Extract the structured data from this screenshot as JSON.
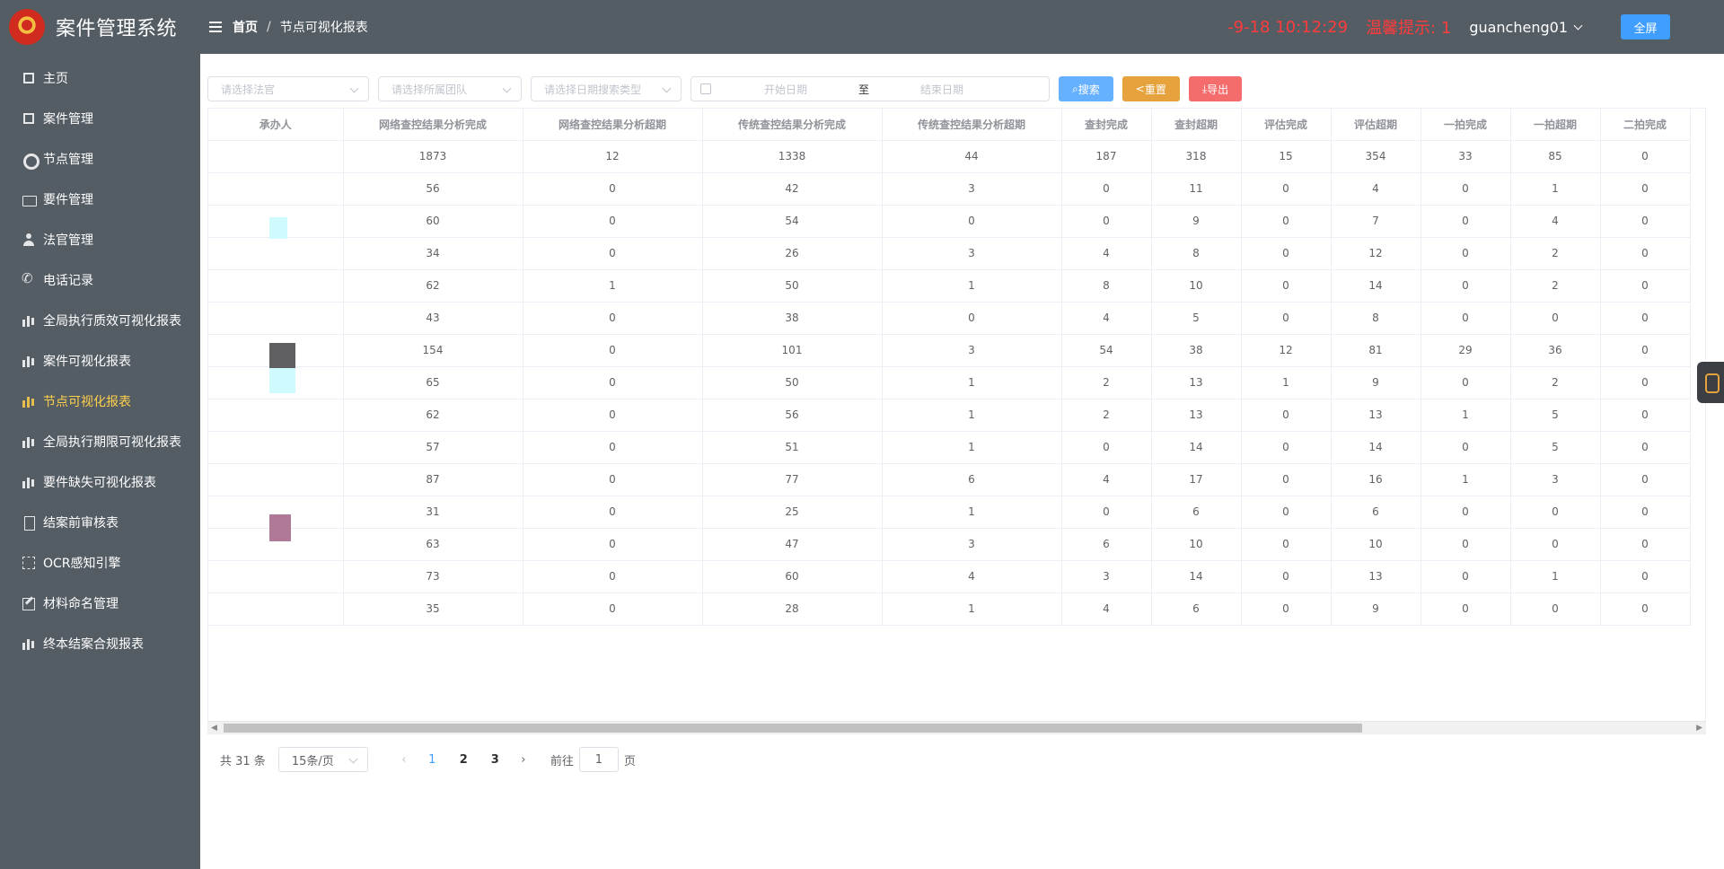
{
  "brand": {
    "title": "案件管理系统"
  },
  "sidebar": {
    "items": [
      {
        "label": "主页",
        "icon": "bars-icon"
      },
      {
        "label": "案件管理",
        "icon": "bars-icon"
      },
      {
        "label": "节点管理",
        "icon": "gear-icon"
      },
      {
        "label": "要件管理",
        "icon": "folder-icon"
      },
      {
        "label": "法官管理",
        "icon": "user-icon"
      },
      {
        "label": "电话记录",
        "icon": "phone-icon"
      },
      {
        "label": "全局执行质效可视化报表",
        "icon": "chart-icon"
      },
      {
        "label": "案件可视化报表",
        "icon": "chart-icon"
      },
      {
        "label": "节点可视化报表",
        "icon": "chart-icon",
        "active": true
      },
      {
        "label": "全局执行期限可视化报表",
        "icon": "chart-icon"
      },
      {
        "label": "要件缺失可视化报表",
        "icon": "chart-icon"
      },
      {
        "label": "结案前审核表",
        "icon": "doc-icon"
      },
      {
        "label": "OCR感知引擎",
        "icon": "scan-icon"
      },
      {
        "label": "材料命名管理",
        "icon": "edit-icon"
      },
      {
        "label": "终本结案合规报表",
        "icon": "chart-icon"
      }
    ],
    "active_color": "#ffd04b"
  },
  "header": {
    "breadcrumb_home": "首页",
    "breadcrumb_sep": "/",
    "breadcrumb_current": "节点可视化报表",
    "clock": "-9-18 10:12:29",
    "warning": "温馨提示: 1",
    "username": "guancheng01",
    "fullscreen_label": "全屏"
  },
  "filters": {
    "judge_placeholder": "请选择法官",
    "team_placeholder": "请选择所属团队",
    "date_type_placeholder": "请选择日期搜索类型",
    "start_date_placeholder": "开始日期",
    "date_separator": "至",
    "end_date_placeholder": "结束日期",
    "search_label": "搜索",
    "reset_label": "重置",
    "export_label": "导出"
  },
  "table": {
    "headers": [
      "承办人",
      "网络查控结果分析完成",
      "网络查控结果分析超期",
      "传统查控结果分析完成",
      "传统查控结果分析超期",
      "查封完成",
      "查封超期",
      "评估完成",
      "评估超期",
      "一拍完成",
      "一拍超期",
      "二拍完成"
    ],
    "rows": [
      [
        "",
        "1873",
        "12",
        "1338",
        "44",
        "187",
        "318",
        "15",
        "354",
        "33",
        "85",
        "0"
      ],
      [
        "",
        "56",
        "0",
        "42",
        "3",
        "0",
        "11",
        "0",
        "4",
        "0",
        "1",
        "0"
      ],
      [
        "",
        "60",
        "0",
        "54",
        "0",
        "0",
        "9",
        "0",
        "7",
        "0",
        "4",
        "0"
      ],
      [
        "",
        "34",
        "0",
        "26",
        "3",
        "4",
        "8",
        "0",
        "12",
        "0",
        "2",
        "0"
      ],
      [
        "",
        "62",
        "1",
        "50",
        "1",
        "8",
        "10",
        "0",
        "14",
        "0",
        "2",
        "0"
      ],
      [
        "",
        "43",
        "0",
        "38",
        "0",
        "4",
        "5",
        "0",
        "8",
        "0",
        "0",
        "0"
      ],
      [
        "",
        "154",
        "0",
        "101",
        "3",
        "54",
        "38",
        "12",
        "81",
        "29",
        "36",
        "0"
      ],
      [
        "",
        "65",
        "0",
        "50",
        "1",
        "2",
        "13",
        "1",
        "9",
        "0",
        "2",
        "0"
      ],
      [
        "",
        "62",
        "0",
        "56",
        "1",
        "2",
        "13",
        "0",
        "13",
        "1",
        "5",
        "0"
      ],
      [
        "",
        "57",
        "0",
        "51",
        "1",
        "0",
        "14",
        "0",
        "14",
        "0",
        "5",
        "0"
      ],
      [
        "",
        "87",
        "0",
        "77",
        "6",
        "4",
        "17",
        "0",
        "16",
        "1",
        "3",
        "0"
      ],
      [
        "",
        "31",
        "0",
        "25",
        "1",
        "0",
        "6",
        "0",
        "6",
        "0",
        "0",
        "0"
      ],
      [
        "",
        "63",
        "0",
        "47",
        "3",
        "6",
        "10",
        "0",
        "10",
        "0",
        "0",
        "0"
      ],
      [
        "",
        "73",
        "0",
        "60",
        "4",
        "3",
        "14",
        "0",
        "13",
        "0",
        "1",
        "0"
      ],
      [
        "",
        "35",
        "0",
        "28",
        "1",
        "4",
        "6",
        "0",
        "9",
        "0",
        "0",
        "0"
      ]
    ]
  },
  "pagination": {
    "total": "共 31 条",
    "page_size": "15条/页",
    "pages": [
      "1",
      "2",
      "3"
    ],
    "current_page": "1",
    "goto_prefix": "前往",
    "goto_value": "1",
    "goto_suffix": "页"
  },
  "colors": {
    "sidebar_bg": "#545c64",
    "clock": "#ff3b3b",
    "primary": "#409eff",
    "search": "#66b1ff",
    "reset": "#e6a23c",
    "export": "#f56c6c"
  }
}
